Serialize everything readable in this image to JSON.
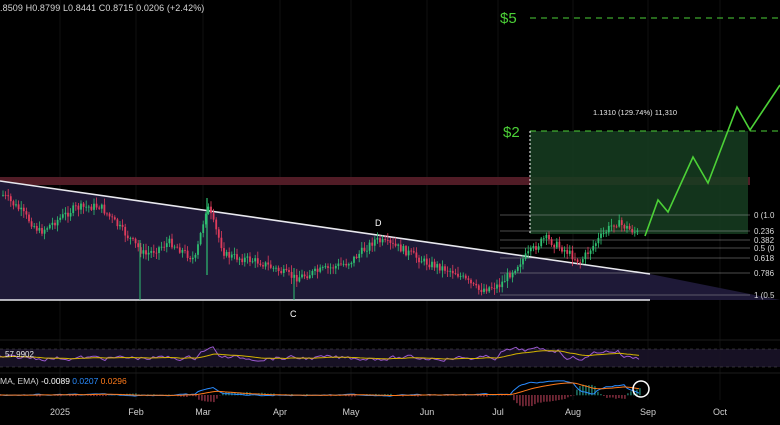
{
  "header": {
    "ohlc_line": ".8509  H0.8799  L0.8441  C0.8715  0.0206 (+2.42%)"
  },
  "annotations": {
    "target_5": "$5",
    "target_2": "$2",
    "projection_label": "1.1310 (129.74%) 11,310",
    "point_c": "C",
    "point_d": "D"
  },
  "fib_labels": [
    "0 (1.0",
    "0.236",
    "0.382",
    "0.5 (0",
    "0.618",
    "0.786",
    "1 (0.5"
  ],
  "rsi": {
    "value": "57.9902"
  },
  "macd": {
    "prefix": "MA, EMA)",
    "values": [
      "-0.0089",
      "0.0207",
      "0.0296"
    ],
    "colors": [
      "#ffffff",
      "#2a8cff",
      "#ff7a1a"
    ]
  },
  "colors": {
    "bull": "#2fbf71",
    "bear": "#e03c5c",
    "projection": "#4cd137",
    "resistance_band": "#5a1f2a",
    "triangle_fill": "#201a3a",
    "rsi_line": "#9b59d0",
    "rsi_ma": "#d4b400",
    "macd_line": "#2a8cff",
    "signal_line": "#ff7a1a"
  },
  "chart_data": {
    "type": "candlestick",
    "x_axis": {
      "tick_labels": [
        "2025",
        "Feb",
        "Mar",
        "Apr",
        "May",
        "Jun",
        "Jul",
        "Aug",
        "Sep",
        "Oct"
      ]
    },
    "fibonacci_levels": [
      {
        "label": "0 (1.0",
        "ratio": 0
      },
      {
        "label": "0.236",
        "ratio": 0.236
      },
      {
        "label": "0.382",
        "ratio": 0.382
      },
      {
        "label": "0.5 (0",
        "ratio": 0.5
      },
      {
        "label": "0.618",
        "ratio": 0.618
      },
      {
        "label": "0.786",
        "ratio": 0.786
      },
      {
        "label": "1 (0.5",
        "ratio": 1
      }
    ],
    "price_targets": [
      "$5",
      "$2"
    ],
    "projection": {
      "label": "1.1310 (129.74%) 11,310",
      "change_percent": 129.74
    },
    "last_close": 0.8715,
    "rsi_last": 57.9902,
    "macd_last": {
      "histogram": -0.0089,
      "macd": 0.0207,
      "signal": 0.0296
    }
  }
}
